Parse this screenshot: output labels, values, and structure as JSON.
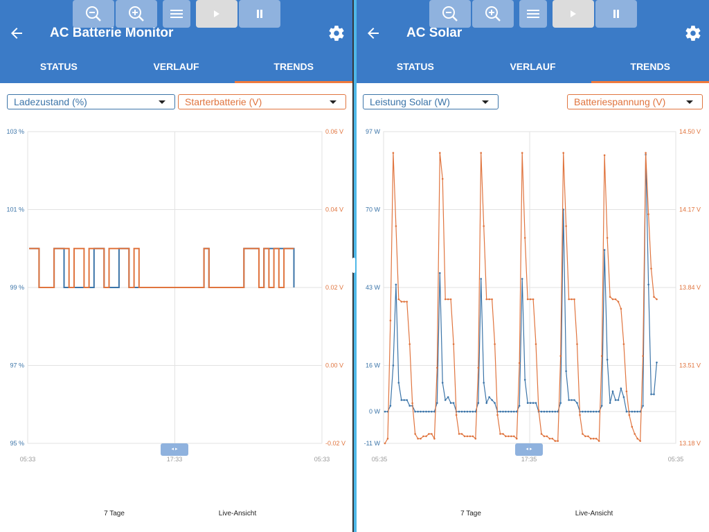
{
  "screens": [
    {
      "title": "AC Batterie Monitor",
      "tabs": [
        {
          "label": "STATUS"
        },
        {
          "label": "VERLAUF"
        },
        {
          "label": "TRENDS"
        }
      ],
      "active_tab": 2,
      "dropdown_left": {
        "value": "Ladezustand (%)"
      },
      "dropdown_right": {
        "value": "Starterbatterie (V)"
      },
      "zoom_label": "7 Tage",
      "live_label": "Live-Ansicht"
    },
    {
      "title": "AC Solar",
      "tabs": [
        {
          "label": "STATUS"
        },
        {
          "label": "VERLAUF"
        },
        {
          "label": "TRENDS"
        }
      ],
      "active_tab": 2,
      "dropdown_left": {
        "value": "Leistung Solar (W)"
      },
      "dropdown_right": {
        "value": "Batteriespannung (V)"
      },
      "zoom_label": "7 Tage",
      "live_label": "Live-Ansicht"
    }
  ],
  "colors": {
    "primary": "#3b7bc7",
    "series_blue": "#3b74a8",
    "series_orange": "#e0743e",
    "accent": "#f07a3c",
    "divider": "#4fb8e8"
  },
  "icons": {
    "back": "arrow-left-icon",
    "settings": "gear-icon",
    "zoom_out": "zoom-out-icon",
    "zoom_in": "zoom-in-icon",
    "menu": "menu-icon",
    "play": "play-icon",
    "pause": "pause-icon"
  },
  "chart_data": [
    {
      "type": "line",
      "x_tick_labels": [
        "05:33",
        "17:33",
        "05:33"
      ],
      "left_axis": {
        "series": "Ladezustand (%)",
        "ticks": [
          "103 %",
          "101 %",
          "99 %",
          "97 %",
          "95 %"
        ],
        "ylim": [
          95,
          103
        ],
        "color": "#3b74a8"
      },
      "right_axis": {
        "series": "Starterbatterie (V)",
        "ticks": [
          "0.06 V",
          "0.04 V",
          "0.02 V",
          "0.00 V",
          "-0.02 V"
        ],
        "ylim": [
          -0.02,
          0.06
        ],
        "color": "#e0743e"
      },
      "series": [
        {
          "axis": "left",
          "values": [
            100,
            100,
            99,
            99,
            99,
            100,
            100,
            99,
            99,
            99,
            99,
            99,
            99,
            100,
            100,
            99,
            99,
            99,
            100,
            100,
            99,
            99,
            99,
            99,
            99,
            99,
            99,
            99,
            99,
            99,
            99,
            99,
            99,
            99,
            99,
            100,
            99,
            99,
            99,
            99,
            99,
            99,
            99,
            100,
            100,
            100,
            99,
            100,
            100,
            100,
            100,
            100,
            100,
            99
          ]
        },
        {
          "axis": "right",
          "values": [
            0.03,
            0.03,
            0.02,
            0.02,
            0.02,
            0.03,
            0.03,
            0.03,
            0.02,
            0.03,
            0.03,
            0.02,
            0.03,
            0.03,
            0.03,
            0.02,
            0.03,
            0.03,
            0.03,
            0.03,
            0.02,
            0.03,
            0.02,
            0.02,
            0.02,
            0.02,
            0.02,
            0.02,
            0.02,
            0.02,
            0.02,
            0.02,
            0.02,
            0.02,
            0.02,
            0.03,
            0.02,
            0.02,
            0.02,
            0.02,
            0.02,
            0.02,
            0.02,
            0.03,
            0.03,
            0.03,
            0.02,
            0.03,
            0.02,
            0.03,
            0.02,
            0.03,
            0.03,
            0.03
          ]
        }
      ],
      "grid": true
    },
    {
      "type": "line",
      "x_tick_labels": [
        "05:35",
        "17:35",
        "05:35"
      ],
      "left_axis": {
        "series": "Leistung Solar (W)",
        "ticks": [
          "97 W",
          "70 W",
          "43 W",
          "16 W",
          "0 W",
          "-11 W"
        ],
        "ylim": [
          -11,
          97
        ],
        "color": "#3b74a8"
      },
      "right_axis": {
        "series": "Batteriespannung (V)",
        "ticks": [
          "14.50 V",
          "14.17 V",
          "13.84 V",
          "13.51 V",
          "13.18 V"
        ],
        "ylim": [
          13.18,
          14.5
        ],
        "color": "#e0743e"
      },
      "series": [
        {
          "axis": "left",
          "values": [
            0,
            0,
            2,
            16,
            44,
            10,
            4,
            4,
            4,
            2,
            2,
            0,
            0,
            0,
            0,
            0,
            0,
            0,
            0,
            3,
            48,
            10,
            4,
            5,
            3,
            3,
            0,
            0,
            0,
            0,
            0,
            0,
            0,
            0,
            3,
            46,
            10,
            3,
            5,
            4,
            3,
            0,
            0,
            0,
            0,
            0,
            0,
            0,
            0,
            2,
            46,
            11,
            3,
            3,
            3,
            3,
            0,
            0,
            0,
            0,
            0,
            0,
            0,
            0,
            3,
            70,
            14,
            4,
            4,
            4,
            3,
            0,
            0,
            0,
            0,
            0,
            0,
            0,
            0,
            2,
            56,
            18,
            3,
            7,
            4,
            4,
            8,
            5,
            0,
            0,
            0,
            0,
            0,
            0,
            2,
            89,
            44,
            6,
            6,
            17
          ]
        },
        {
          "axis": "right",
          "values": [
            13.18,
            13.2,
            13.7,
            14.41,
            14.1,
            13.79,
            13.78,
            13.78,
            13.78,
            13.6,
            13.35,
            13.22,
            13.2,
            13.2,
            13.21,
            13.21,
            13.22,
            13.22,
            13.2,
            13.5,
            14.41,
            14.3,
            13.79,
            13.79,
            13.79,
            13.6,
            13.3,
            13.22,
            13.22,
            13.21,
            13.21,
            13.21,
            13.21,
            13.2,
            13.5,
            14.41,
            14.1,
            13.79,
            13.79,
            13.79,
            13.6,
            13.3,
            13.22,
            13.22,
            13.21,
            13.21,
            13.21,
            13.21,
            13.2,
            13.52,
            14.41,
            14.05,
            13.79,
            13.79,
            13.79,
            13.6,
            13.32,
            13.22,
            13.21,
            13.21,
            13.2,
            13.2,
            13.19,
            13.19,
            13.55,
            14.41,
            14.1,
            13.79,
            13.79,
            13.79,
            13.6,
            13.3,
            13.22,
            13.21,
            13.21,
            13.2,
            13.2,
            13.2,
            13.19,
            13.55,
            14.4,
            14.05,
            13.8,
            13.79,
            13.79,
            13.78,
            13.75,
            13.6,
            13.4,
            13.3,
            13.25,
            13.22,
            13.2,
            13.19,
            13.55,
            14.41,
            14.15,
            13.92,
            13.8,
            13.79
          ]
        }
      ],
      "grid": true
    }
  ]
}
